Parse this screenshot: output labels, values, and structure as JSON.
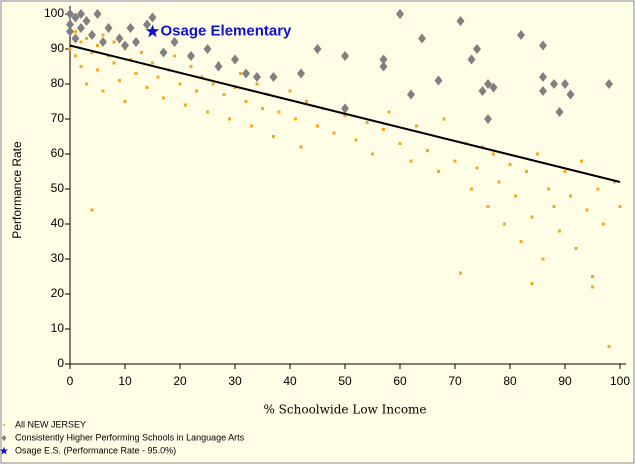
{
  "chart_data": {
    "type": "scatter",
    "xlabel": "% Schoolwide Low Income",
    "ylabel": "Performance Rate",
    "xlim": [
      0,
      100
    ],
    "ylim": [
      0,
      100
    ],
    "xticks": [
      0,
      10,
      20,
      30,
      40,
      50,
      60,
      70,
      80,
      90,
      100
    ],
    "yticks": [
      0,
      10,
      20,
      30,
      40,
      50,
      60,
      70,
      80,
      90,
      100
    ],
    "series": [
      {
        "name": "All NEW JERSEY",
        "color": "#f5a81e",
        "marker": "square",
        "x": [
          0,
          1,
          1,
          2,
          2,
          3,
          3,
          4,
          5,
          5,
          6,
          6,
          7,
          8,
          8,
          9,
          10,
          10,
          11,
          12,
          13,
          14,
          15,
          16,
          17,
          18,
          19,
          20,
          21,
          22,
          23,
          24,
          25,
          26,
          27,
          28,
          29,
          30,
          31,
          32,
          33,
          34,
          35,
          36,
          37,
          38,
          40,
          41,
          42,
          43,
          45,
          46,
          48,
          50,
          52,
          54,
          55,
          57,
          58,
          60,
          62,
          63,
          65,
          67,
          68,
          70,
          72,
          73,
          74,
          75,
          76,
          77,
          78,
          79,
          80,
          81,
          82,
          83,
          84,
          85,
          86,
          87,
          88,
          89,
          90,
          91,
          92,
          93,
          94,
          95,
          96,
          97,
          98,
          99,
          100,
          4,
          71,
          84,
          95
        ],
        "values": [
          90,
          95,
          88,
          92,
          85,
          93,
          80,
          89,
          91,
          84,
          94,
          78,
          88,
          86,
          92,
          81,
          90,
          75,
          87,
          83,
          89,
          79,
          86,
          82,
          76,
          84,
          88,
          80,
          74,
          85,
          78,
          82,
          72,
          80,
          86,
          77,
          70,
          79,
          83,
          75,
          68,
          80,
          73,
          77,
          65,
          72,
          78,
          70,
          62,
          75,
          68,
          73,
          66,
          71,
          64,
          69,
          60,
          67,
          72,
          63,
          58,
          68,
          61,
          55,
          70,
          58,
          63,
          50,
          56,
          62,
          45,
          60,
          52,
          40,
          57,
          48,
          35,
          55,
          42,
          60,
          30,
          50,
          45,
          38,
          55,
          48,
          33,
          58,
          44,
          25,
          50,
          40,
          5,
          52,
          45,
          44,
          26,
          23,
          22
        ]
      },
      {
        "name": "Consistently Higher Performing Schools in Language Arts",
        "color": "#808080",
        "marker": "diamond",
        "x": [
          0,
          0,
          0,
          1,
          1,
          2,
          2,
          3,
          4,
          5,
          6,
          7,
          9,
          10,
          11,
          12,
          14,
          15,
          17,
          19,
          22,
          25,
          27,
          30,
          32,
          34,
          37,
          42,
          45,
          50,
          50,
          57,
          57,
          60,
          62,
          64,
          67,
          71,
          73,
          74,
          75,
          76,
          76,
          77,
          82,
          86,
          86,
          86,
          88,
          89,
          90,
          91,
          98
        ],
        "values": [
          100,
          97,
          95,
          99,
          93,
          96,
          100,
          98,
          94,
          100,
          92,
          96,
          93,
          91,
          96,
          92,
          97,
          99,
          89,
          92,
          88,
          90,
          85,
          87,
          83,
          82,
          82,
          83,
          90,
          88,
          73,
          85,
          87,
          100,
          77,
          93,
          81,
          98,
          87,
          90,
          78,
          80,
          70,
          79,
          94,
          91,
          82,
          78,
          80,
          72,
          80,
          77,
          80
        ]
      },
      {
        "name": "Osage E.S. (Performance Rate - 95.0%)",
        "color": "#1010d0",
        "marker": "star",
        "x": [
          15
        ],
        "values": [
          95
        ]
      }
    ],
    "annotation": "Osage Elementary",
    "trend": {
      "color": "#000000",
      "x": [
        0,
        100
      ],
      "values": [
        91,
        52
      ]
    }
  }
}
